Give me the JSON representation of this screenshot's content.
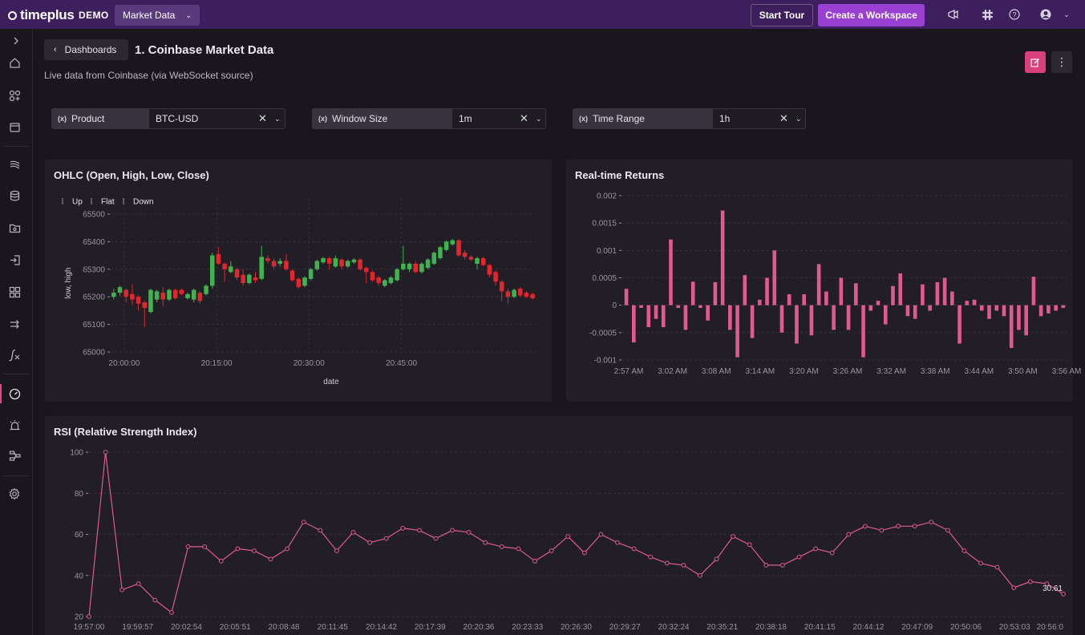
{
  "topbar": {
    "logo_text": "timeplus",
    "demo_label": "DEMO",
    "workspace": "Market Data",
    "start_tour": "Start Tour",
    "create_workspace": "Create a Workspace"
  },
  "header": {
    "back_label": "Dashboards",
    "title": "1. Coinbase Market Data",
    "description": "Live data from Coinbase (via WebSocket source)"
  },
  "filters": [
    {
      "label": "Product",
      "value": "BTC-USD"
    },
    {
      "label": "Window Size",
      "value": "1m"
    },
    {
      "label": "Time Range",
      "value": "1h"
    }
  ],
  "panels": {
    "ohlc": {
      "title": "OHLC (Open, High, Low, Close)"
    },
    "returns": {
      "title": "Real-time Returns"
    },
    "rsi": {
      "title": "RSI (Relative Strength Index)"
    }
  },
  "chart_data": [
    {
      "type": "candlestick",
      "title": "OHLC (Open, High, Low, Close)",
      "xlabel": "date",
      "ylabel": "low, high",
      "legend": [
        "Up",
        "Flat",
        "Down"
      ],
      "legend_position": "top-left",
      "colors": {
        "up": "#3fb34f",
        "down": "#e0262e"
      },
      "ylim": [
        65000,
        65500
      ],
      "yticks": [
        65000,
        65100,
        65200,
        65300,
        65400,
        65500
      ],
      "xticks": [
        "20:00:00",
        "20:15:00",
        "20:30:00",
        "20:45:00"
      ],
      "candles": [
        {
          "o": 65200,
          "c": 65215,
          "h": 65230,
          "l": 65190
        },
        {
          "o": 65215,
          "c": 65235,
          "h": 65240,
          "l": 65205
        },
        {
          "o": 65225,
          "c": 65200,
          "h": 65230,
          "l": 65180
        },
        {
          "o": 65210,
          "c": 65190,
          "h": 65245,
          "l": 65170
        },
        {
          "o": 65200,
          "c": 65175,
          "h": 65205,
          "l": 65150
        },
        {
          "o": 65180,
          "c": 65160,
          "h": 65185,
          "l": 65090
        },
        {
          "o": 65145,
          "c": 65225,
          "h": 65230,
          "l": 65140
        },
        {
          "o": 65190,
          "c": 65220,
          "h": 65225,
          "l": 65180
        },
        {
          "o": 65215,
          "c": 65190,
          "h": 65235,
          "l": 65165
        },
        {
          "o": 65190,
          "c": 65225,
          "h": 65230,
          "l": 65185
        },
        {
          "o": 65225,
          "c": 65195,
          "h": 65230,
          "l": 65190
        },
        {
          "o": 65225,
          "c": 65210,
          "h": 65230,
          "l": 65205
        },
        {
          "o": 65195,
          "c": 65210,
          "h": 65215,
          "l": 65190
        },
        {
          "o": 65190,
          "c": 65225,
          "h": 65230,
          "l": 65180
        },
        {
          "o": 65215,
          "c": 65185,
          "h": 65220,
          "l": 65175
        },
        {
          "o": 65210,
          "c": 65240,
          "h": 65245,
          "l": 65205
        },
        {
          "o": 65240,
          "c": 65350,
          "h": 65360,
          "l": 65230
        },
        {
          "o": 65355,
          "c": 65320,
          "h": 65380,
          "l": 65315
        },
        {
          "o": 65320,
          "c": 65300,
          "h": 65325,
          "l": 65255
        },
        {
          "o": 65290,
          "c": 65310,
          "h": 65330,
          "l": 65285
        },
        {
          "o": 65300,
          "c": 65270,
          "h": 65305,
          "l": 65260
        },
        {
          "o": 65280,
          "c": 65250,
          "h": 65300,
          "l": 65240
        },
        {
          "o": 65250,
          "c": 65280,
          "h": 65285,
          "l": 65245
        },
        {
          "o": 65270,
          "c": 65260,
          "h": 65290,
          "l": 65250
        },
        {
          "o": 65265,
          "c": 65345,
          "h": 65385,
          "l": 65260
        },
        {
          "o": 65340,
          "c": 65330,
          "h": 65350,
          "l": 65320
        },
        {
          "o": 65330,
          "c": 65310,
          "h": 65340,
          "l": 65300
        },
        {
          "o": 65320,
          "c": 65330,
          "h": 65340,
          "l": 65310
        },
        {
          "o": 65330,
          "c": 65300,
          "h": 65355,
          "l": 65295
        },
        {
          "o": 65295,
          "c": 65260,
          "h": 65300,
          "l": 65255
        },
        {
          "o": 65265,
          "c": 65235,
          "h": 65270,
          "l": 65230
        },
        {
          "o": 65240,
          "c": 65270,
          "h": 65275,
          "l": 65235
        },
        {
          "o": 65265,
          "c": 65300,
          "h": 65305,
          "l": 65260
        },
        {
          "o": 65300,
          "c": 65330,
          "h": 65335,
          "l": 65295
        },
        {
          "o": 65325,
          "c": 65340,
          "h": 65345,
          "l": 65320
        },
        {
          "o": 65340,
          "c": 65320,
          "h": 65345,
          "l": 65300
        },
        {
          "o": 65310,
          "c": 65340,
          "h": 65350,
          "l": 65305
        },
        {
          "o": 65335,
          "c": 65310,
          "h": 65340,
          "l": 65300
        },
        {
          "o": 65310,
          "c": 65330,
          "h": 65335,
          "l": 65305
        },
        {
          "o": 65325,
          "c": 65335,
          "h": 65340,
          "l": 65320
        },
        {
          "o": 65335,
          "c": 65300,
          "h": 65340,
          "l": 65295
        },
        {
          "o": 65305,
          "c": 65290,
          "h": 65310,
          "l": 65250
        },
        {
          "o": 65290,
          "c": 65260,
          "h": 65295,
          "l": 65255
        },
        {
          "o": 65270,
          "c": 65250,
          "h": 65275,
          "l": 65240
        },
        {
          "o": 65240,
          "c": 65260,
          "h": 65265,
          "l": 65235
        },
        {
          "o": 65250,
          "c": 65270,
          "h": 65275,
          "l": 65245
        },
        {
          "o": 65260,
          "c": 65300,
          "h": 65305,
          "l": 65255
        },
        {
          "o": 65300,
          "c": 65320,
          "h": 65385,
          "l": 65295
        },
        {
          "o": 65300,
          "c": 65320,
          "h": 65325,
          "l": 65290
        },
        {
          "o": 65320,
          "c": 65290,
          "h": 65330,
          "l": 65285
        },
        {
          "o": 65290,
          "c": 65320,
          "h": 65325,
          "l": 65285
        },
        {
          "o": 65305,
          "c": 65335,
          "h": 65340,
          "l": 65300
        },
        {
          "o": 65320,
          "c": 65360,
          "h": 65365,
          "l": 65315
        },
        {
          "o": 65340,
          "c": 65380,
          "h": 65385,
          "l": 65335
        },
        {
          "o": 65370,
          "c": 65400,
          "h": 65405,
          "l": 65365
        },
        {
          "o": 65390,
          "c": 65405,
          "h": 65410,
          "l": 65385
        },
        {
          "o": 65405,
          "c": 65350,
          "h": 65410,
          "l": 65345
        },
        {
          "o": 65360,
          "c": 65345,
          "h": 65370,
          "l": 65335
        },
        {
          "o": 65345,
          "c": 65335,
          "h": 65350,
          "l": 65330
        },
        {
          "o": 65320,
          "c": 65340,
          "h": 65345,
          "l": 65300
        },
        {
          "o": 65340,
          "c": 65315,
          "h": 65345,
          "l": 65310
        },
        {
          "o": 65315,
          "c": 65280,
          "h": 65320,
          "l": 65270
        },
        {
          "o": 65290,
          "c": 65255,
          "h": 65295,
          "l": 65240
        },
        {
          "o": 65255,
          "c": 65220,
          "h": 65260,
          "l": 65185
        },
        {
          "o": 65220,
          "c": 65200,
          "h": 65230,
          "l": 65175
        },
        {
          "o": 65200,
          "c": 65225,
          "h": 65230,
          "l": 65195
        },
        {
          "o": 65230,
          "c": 65205,
          "h": 65235,
          "l": 65200
        },
        {
          "o": 65215,
          "c": 65200,
          "h": 65220,
          "l": 65195
        },
        {
          "o": 65210,
          "c": 65195,
          "h": 65215,
          "l": 65190
        }
      ]
    },
    {
      "type": "bar",
      "title": "Real-time Returns",
      "color": "#e05a8e",
      "ylim": [
        -0.001,
        0.002
      ],
      "yticks": [
        -0.001,
        -0.0005,
        0,
        0.0005,
        0.001,
        0.0015,
        0.002
      ],
      "ytick_labels": [
        "-0.001",
        "-0.0005",
        "0",
        "0.0005",
        "0.001",
        "0.0015",
        "0.002"
      ],
      "xticks": [
        "2:57 AM",
        "3:02 AM",
        "3:08 AM",
        "3:14 AM",
        "3:20 AM",
        "3:26 AM",
        "3:32 AM",
        "3:38 AM",
        "3:44 AM",
        "3:50 AM",
        "3:56 AM"
      ],
      "values": [
        0.0003,
        -0.00068,
        -5e-05,
        -0.0004,
        -0.00025,
        -0.0004,
        0.0012,
        -5e-05,
        -0.00045,
        0.00043,
        -5e-05,
        -0.00028,
        0.00042,
        0.00173,
        -0.00045,
        -0.00095,
        0.00055,
        -0.0006,
        0.0001,
        0.0005,
        0.001,
        -0.0005,
        0.0002,
        -0.0007,
        0.0002,
        -0.00055,
        0.00075,
        0.00025,
        -0.00045,
        0.0005,
        -0.00045,
        0.0004,
        -0.00095,
        -0.0001,
        8e-05,
        -0.00035,
        0.00035,
        0.00058,
        -0.0002,
        -0.00025,
        0.00038,
        -0.0001,
        0.00042,
        0.0005,
        0.00025,
        -0.0007,
        8e-05,
        0.0001,
        -0.0001,
        -0.00025,
        -0.0001,
        -0.0002,
        -0.00078,
        -0.00045,
        -0.00055,
        0.00052,
        -0.0002,
        -0.00015,
        -0.0001,
        -5e-05
      ]
    },
    {
      "type": "line",
      "title": "RSI (Relative Strength Index)",
      "color": "#e05a8e",
      "ylim": [
        20,
        100
      ],
      "yticks": [
        20,
        40,
        60,
        80,
        100
      ],
      "xticks": [
        "19:57:00",
        "19:59:57",
        "20:02:54",
        "20:05:51",
        "20:08:48",
        "20:11:45",
        "20:14:42",
        "20:17:39",
        "20:20:36",
        "20:23:33",
        "20:26:30",
        "20:29:27",
        "20:32:24",
        "20:35:21",
        "20:38:18",
        "20:41:15",
        "20:44:12",
        "20:47:09",
        "20:50:06",
        "20:53:03",
        "20:56:0"
      ],
      "last_label": "30.61",
      "values": [
        20,
        100,
        33,
        36,
        28,
        22,
        54,
        54,
        47,
        53,
        52,
        48,
        53,
        66,
        62,
        52,
        61,
        56,
        58,
        63,
        62,
        58,
        62,
        61,
        56,
        54,
        53,
        47,
        52,
        59,
        51,
        60,
        56,
        53,
        49,
        46,
        45,
        40,
        48,
        59,
        55,
        45,
        45,
        49,
        53,
        51,
        60,
        64,
        62,
        64,
        64,
        66,
        62,
        52,
        46,
        44,
        34,
        37,
        36,
        31
      ]
    }
  ]
}
